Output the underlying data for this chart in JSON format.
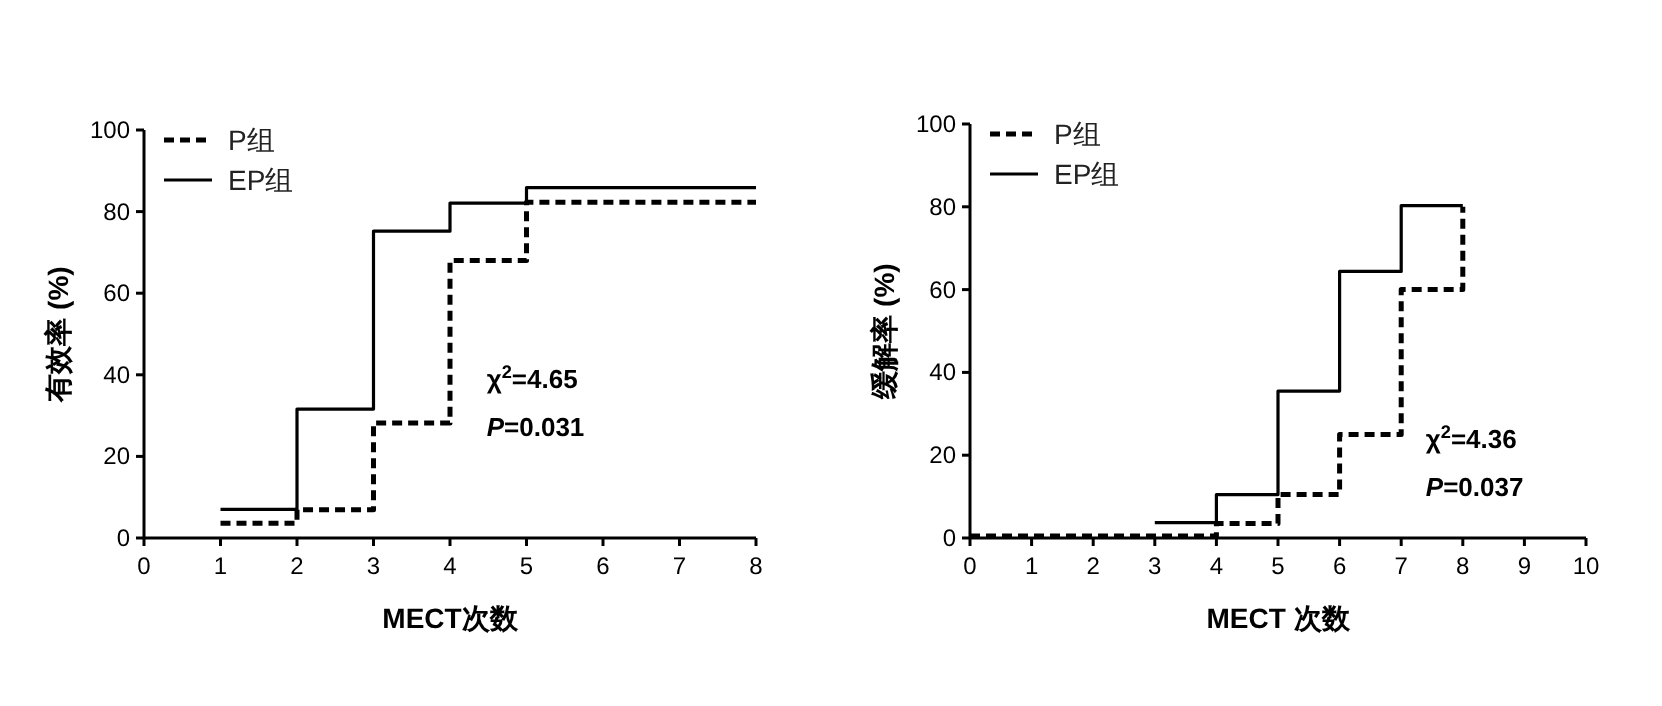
{
  "chart_data": [
    {
      "type": "step",
      "xlabel": "MECT次数",
      "ylabel": "有效率 (%)",
      "xlim": [
        0,
        8
      ],
      "xticks": [
        0,
        1,
        2,
        3,
        4,
        5,
        6,
        7,
        8
      ],
      "ylim": [
        0,
        100
      ],
      "yticks": [
        0,
        20,
        40,
        60,
        80,
        100
      ],
      "legend": "top left",
      "grid": false,
      "annotations": [
        "χ$^{2}$=4.65",
        "*P*=0.031"
      ],
      "series": [
        {
          "name": "P组",
          "color": "#000000",
          "line_style": "dashed",
          "x": [
            1,
            2,
            3,
            4,
            5,
            8
          ],
          "values": [
            3.6,
            6.9,
            28.2,
            68,
            82.3,
            82.3
          ]
        },
        {
          "name": "EP组",
          "color": "#000000",
          "line_style": "solid",
          "x": [
            1,
            2,
            3,
            4,
            5,
            8
          ],
          "values": [
            7,
            31.6,
            75.2,
            82.1,
            85.9,
            85.9
          ]
        }
      ]
    },
    {
      "type": "step",
      "xlabel": "MECT 次数",
      "ylabel": "缓解率 (%)",
      "xlim": [
        0,
        10
      ],
      "xticks": [
        0,
        1,
        2,
        3,
        4,
        5,
        6,
        7,
        8,
        9,
        10
      ],
      "ylim": [
        0,
        100
      ],
      "yticks": [
        0,
        20,
        40,
        60,
        80,
        100
      ],
      "legend": "top left",
      "grid": false,
      "annotations": [
        "χ$^{2}$=4.36",
        "*P*=0.037"
      ],
      "series": [
        {
          "name": "P组",
          "color": "#000000",
          "line_style": "dashed",
          "x": [
            0,
            4,
            5,
            6,
            7,
            8
          ],
          "values": [
            0.5,
            3.5,
            10.5,
            25,
            60,
            80
          ]
        },
        {
          "name": "EP组",
          "color": "#000000",
          "line_style": "solid",
          "x": [
            3,
            4,
            5,
            6,
            7,
            8
          ],
          "values": [
            3.7,
            10.5,
            35.5,
            64.4,
            80.3,
            80.3
          ]
        }
      ]
    }
  ]
}
